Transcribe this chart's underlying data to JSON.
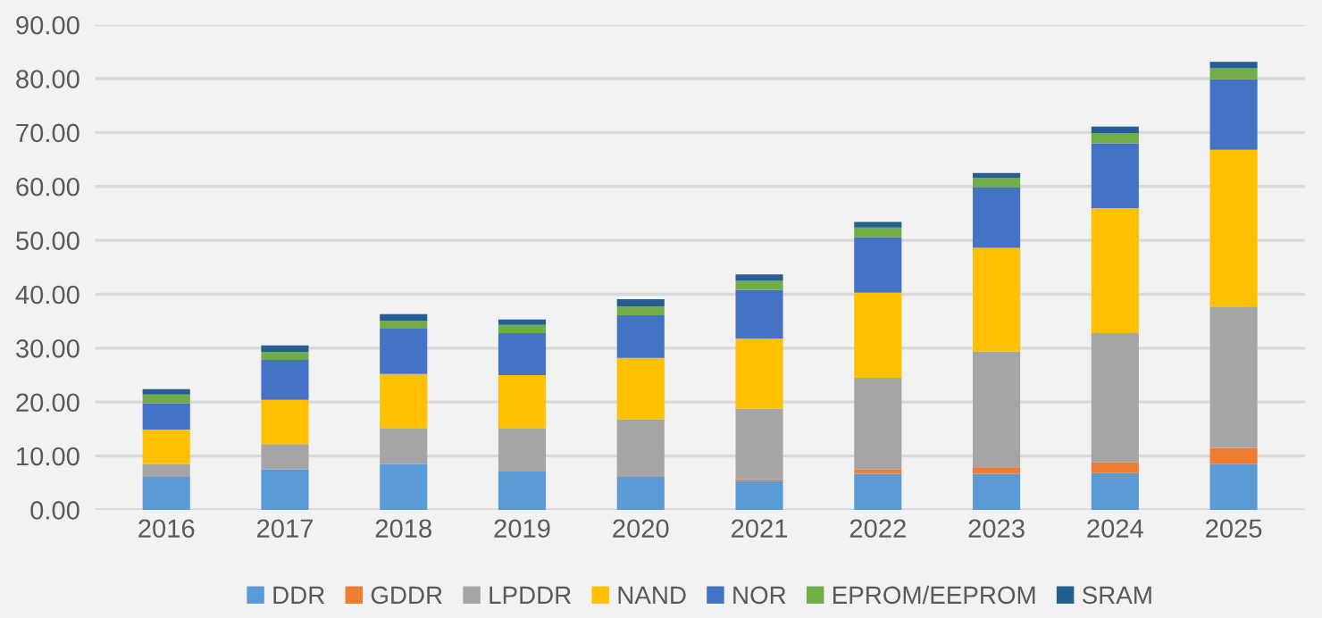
{
  "chart_data": {
    "type": "bar",
    "stacked": true,
    "categories": [
      "2016",
      "2017",
      "2018",
      "2019",
      "2020",
      "2021",
      "2022",
      "2023",
      "2024",
      "2025"
    ],
    "series": [
      {
        "name": "DDR",
        "color": "#5b9bd5",
        "values": [
          6.1,
          7.5,
          8.5,
          7.1,
          6.1,
          5.4,
          6.7,
          6.7,
          6.8,
          8.5
        ]
      },
      {
        "name": "GDDR",
        "color": "#ed7d31",
        "values": [
          0,
          0,
          0,
          0,
          0,
          0.3,
          0.8,
          1.2,
          2.0,
          3.0
        ]
      },
      {
        "name": "LPDDR",
        "color": "#a5a5a5",
        "values": [
          2.4,
          4.7,
          6.7,
          8.1,
          10.7,
          13.1,
          17.0,
          21.5,
          24.0,
          26.2
        ]
      },
      {
        "name": "NAND",
        "color": "#ffc000",
        "values": [
          6.4,
          8.2,
          10.0,
          9.8,
          11.4,
          13.0,
          15.8,
          19.2,
          23.2,
          29.1
        ]
      },
      {
        "name": "NOR",
        "color": "#4472c4",
        "values": [
          4.9,
          7.4,
          8.4,
          7.8,
          7.9,
          9.0,
          10.3,
          11.2,
          12.0,
          13.1
        ]
      },
      {
        "name": "EPROM/EEPROM",
        "color": "#70ad47",
        "values": [
          1.6,
          1.5,
          1.5,
          1.5,
          1.6,
          1.7,
          1.8,
          1.8,
          1.9,
          2.0
        ]
      },
      {
        "name": "SRAM",
        "color": "#255e91",
        "values": [
          1.0,
          1.2,
          1.2,
          1.0,
          1.4,
          1.2,
          1.0,
          0.9,
          1.2,
          1.2
        ]
      }
    ],
    "ylim": [
      0,
      90
    ],
    "yticks": [
      {
        "value": 0,
        "label": "0.00"
      },
      {
        "value": 10,
        "label": "10.00"
      },
      {
        "value": 20,
        "label": "20.00"
      },
      {
        "value": 30,
        "label": "30.00"
      },
      {
        "value": 40,
        "label": "40.00"
      },
      {
        "value": 50,
        "label": "50.00"
      },
      {
        "value": 60,
        "label": "60.00"
      },
      {
        "value": 70,
        "label": "70.00"
      },
      {
        "value": 80,
        "label": "80.00"
      },
      {
        "value": 90,
        "label": "90.00"
      }
    ],
    "grid": "y",
    "legend": "bottom"
  }
}
